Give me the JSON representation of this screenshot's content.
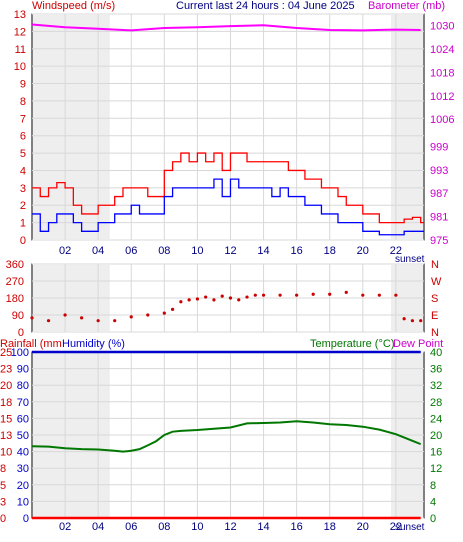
{
  "header": {
    "left": "Windspeed (m/s)",
    "center": "Current last 24 hours : 04 June 2025",
    "right": "Barometer (mb)"
  },
  "mid_labels": {
    "sunset_top": "sunset",
    "sunset_bottom": "sunset"
  },
  "bottom_header": {
    "rainfall": "Rainfall (mm",
    "humidity": "Humidity (%)",
    "temperature": "Temperature (°C)",
    "dewpoint": "Dew Point"
  },
  "x_ticks": [
    "02",
    "04",
    "06",
    "08",
    "10",
    "12",
    "14",
    "16",
    "18",
    "20",
    "22"
  ],
  "colors": {
    "wind_gust": "#ff0000",
    "wind_avg": "#0000ff",
    "barometer": "#ff00ff",
    "direction": "#cc0000",
    "temperature": "#007700",
    "humidity": "#0000cc",
    "rainfall": "#ff0000",
    "grid": "#d8d8d8",
    "night_shade": "#eeeeee"
  },
  "chart_data": [
    {
      "type": "line",
      "title": "Current last 24 hours : 04 June 2025",
      "x_range_hours": [
        0,
        23.7
      ],
      "series": [
        {
          "name": "Windspeed (m/s)",
          "role": "gust",
          "axis": "left",
          "x": [
            0,
            0.5,
            1,
            1.5,
            2,
            2.5,
            3,
            3.5,
            4,
            4.5,
            5,
            5.5,
            6,
            6.5,
            7,
            7.5,
            8,
            8.5,
            9,
            9.5,
            10,
            10.5,
            11,
            11.5,
            12,
            12.5,
            13,
            13.5,
            14,
            14.5,
            15,
            15.5,
            16,
            16.5,
            17,
            17.5,
            18,
            18.5,
            19,
            19.5,
            20,
            20.5,
            21,
            21.5,
            22,
            22.5,
            23,
            23.5
          ],
          "values": [
            3,
            2.5,
            3,
            3.3,
            3,
            2,
            1.5,
            1.5,
            2,
            2,
            2.5,
            3,
            3,
            3,
            2.5,
            2.5,
            4,
            4.5,
            5,
            4.5,
            5,
            4.5,
            5,
            4,
            5,
            5,
            4.5,
            4.5,
            4.5,
            4.5,
            4.5,
            4,
            4,
            3.5,
            3.5,
            3,
            3,
            2.5,
            2,
            2,
            1.5,
            1.5,
            1,
            1,
            1,
            1.2,
            1.3,
            1
          ]
        },
        {
          "name": "Windspeed (m/s)",
          "role": "average",
          "axis": "left",
          "x": [
            0,
            0.5,
            1,
            1.5,
            2,
            2.5,
            3,
            3.5,
            4,
            4.5,
            5,
            5.5,
            6,
            6.5,
            7,
            7.5,
            8,
            8.5,
            9,
            9.5,
            10,
            10.5,
            11,
            11.5,
            12,
            12.5,
            13,
            13.5,
            14,
            14.5,
            15,
            15.5,
            16,
            16.5,
            17,
            17.5,
            18,
            18.5,
            19,
            19.5,
            20,
            20.5,
            21,
            21.5,
            22,
            22.5,
            23,
            23.5
          ],
          "values": [
            1.5,
            0.5,
            1,
            1.5,
            1.5,
            1,
            0.5,
            0.5,
            1,
            1,
            1.5,
            1.5,
            2,
            1.5,
            1.5,
            1.5,
            2.5,
            3,
            3,
            3,
            3,
            3,
            3.5,
            2.5,
            3.5,
            3,
            3,
            3,
            3,
            2.5,
            3,
            2.5,
            2.5,
            2,
            2,
            1.5,
            1.5,
            1,
            1,
            1,
            0.5,
            0.5,
            0.3,
            0.3,
            0.3,
            0.5,
            0.5,
            0.5
          ]
        },
        {
          "name": "Barometer (mb)",
          "axis": "right",
          "x": [
            0,
            2,
            4,
            6,
            8,
            10,
            12,
            14,
            16,
            18,
            20,
            22,
            23.5
          ],
          "values": [
            1030.3,
            1029.6,
            1029.2,
            1028.8,
            1029.4,
            1029.6,
            1029.9,
            1030.1,
            1029.4,
            1028.9,
            1028.8,
            1029.0,
            1028.9
          ]
        }
      ],
      "left_axis": {
        "label": "Windspeed (m/s)",
        "ylim": [
          0,
          13
        ],
        "ticks": [
          "0",
          "1",
          "2",
          "3",
          "4",
          "5",
          "6",
          "7",
          "8",
          "9",
          "10",
          "11",
          "12",
          "13"
        ]
      },
      "right_axis": {
        "label": "Barometer (mb)",
        "ylim": [
          975,
          1033
        ],
        "ticks": [
          "975",
          "981",
          "987",
          "993",
          "999",
          "1006",
          "1012",
          "1018",
          "1024",
          "1030"
        ]
      }
    },
    {
      "type": "scatter",
      "series": [
        {
          "name": "Wind direction",
          "x": [
            0,
            1,
            2,
            3,
            4,
            5,
            6,
            7,
            8,
            8.5,
            9,
            9.5,
            10,
            10.5,
            11,
            11.5,
            12,
            12.5,
            13,
            13.5,
            14,
            15,
            16,
            17,
            18,
            19,
            20,
            21,
            22,
            22.5,
            23,
            23.5
          ],
          "values": [
            75,
            60,
            90,
            75,
            60,
            60,
            80,
            90,
            100,
            120,
            160,
            170,
            175,
            185,
            170,
            190,
            180,
            170,
            185,
            195,
            195,
            195,
            195,
            200,
            200,
            210,
            195,
            195,
            195,
            70,
            60,
            60
          ]
        }
      ],
      "left_axis": {
        "ylim": [
          0,
          360
        ],
        "ticks": [
          "0",
          "90",
          "180",
          "270",
          "360"
        ]
      },
      "right_axis": {
        "ticks": [
          "N",
          "W",
          "S",
          "E",
          "N"
        ]
      }
    },
    {
      "type": "line",
      "series": [
        {
          "name": "Temperature (°C)",
          "axis": "right",
          "x": [
            0,
            1,
            2,
            3,
            4,
            5,
            5.5,
            6,
            6.5,
            7,
            7.5,
            8,
            8.5,
            9,
            10,
            11,
            12,
            13,
            14,
            15,
            16,
            17,
            18,
            19,
            20,
            21,
            22,
            23,
            23.5
          ],
          "values": [
            17.3,
            17.2,
            16.8,
            16.6,
            16.5,
            16.2,
            16.0,
            16.2,
            16.6,
            17.5,
            18.5,
            20,
            20.8,
            21,
            21.2,
            21.5,
            21.8,
            22.8,
            22.9,
            23.0,
            23.3,
            23.0,
            22.6,
            22.4,
            22.0,
            21.3,
            20.2,
            18.6,
            17.8
          ]
        },
        {
          "name": "Humidity (%)",
          "axis": "left-humidity",
          "x": [
            0,
            23.5
          ],
          "values": [
            100,
            100
          ]
        },
        {
          "name": "Rainfall (mm",
          "axis": "left-rain",
          "x": [
            0,
            23.5
          ],
          "values": [
            0,
            0
          ]
        }
      ],
      "rain_axis": {
        "ylim": [
          0,
          25
        ],
        "ticks": [
          "0",
          "3",
          "5",
          "8",
          "10",
          "13",
          "15",
          "18",
          "20",
          "23",
          "25"
        ]
      },
      "humidity_axis": {
        "ylim": [
          0,
          100
        ],
        "ticks": [
          "0",
          "10",
          "20",
          "30",
          "40",
          "50",
          "60",
          "70",
          "80",
          "90",
          "100"
        ]
      },
      "temperature_axis": {
        "ylim": [
          0,
          40
        ],
        "ticks": [
          "0",
          "4",
          "8",
          "12",
          "16",
          "20",
          "24",
          "28",
          "32",
          "36",
          "40"
        ]
      }
    }
  ]
}
